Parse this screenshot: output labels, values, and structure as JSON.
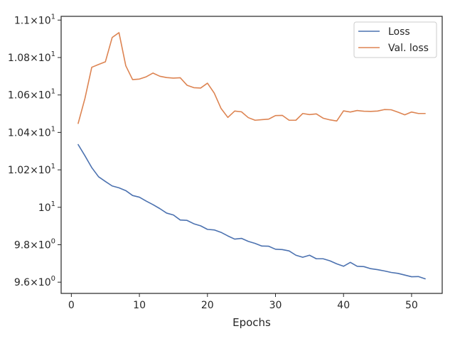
{
  "chart_data": {
    "type": "line",
    "title": "",
    "xlabel": "Epochs",
    "ylabel": "",
    "xlim": [
      -1.5,
      54.5
    ],
    "ylim": [
      9.54,
      11.02
    ],
    "x_ticks": [
      0,
      10,
      20,
      30,
      40,
      50
    ],
    "x_tick_labels": [
      "0",
      "10",
      "20",
      "30",
      "40",
      "50"
    ],
    "y_ticks": [
      {
        "value": 9.6,
        "mantissa": "9.6",
        "power": "0",
        "plain": ""
      },
      {
        "value": 9.8,
        "mantissa": "9.8",
        "power": "0",
        "plain": ""
      },
      {
        "value": 10.0,
        "mantissa": "",
        "power": "1",
        "plain": ""
      },
      {
        "value": 10.2,
        "mantissa": "1.02",
        "power": "1",
        "plain": ""
      },
      {
        "value": 10.4,
        "mantissa": "1.04",
        "power": "1",
        "plain": ""
      },
      {
        "value": 10.6,
        "mantissa": "1.06",
        "power": "1",
        "plain": ""
      },
      {
        "value": 10.8,
        "mantissa": "1.08",
        "power": "1",
        "plain": ""
      },
      {
        "value": 11.0,
        "mantissa": "1.1",
        "power": "1",
        "plain": ""
      }
    ],
    "grid": false,
    "legend": {
      "position": "top-right"
    },
    "x": [
      1,
      2,
      3,
      4,
      5,
      6,
      7,
      8,
      9,
      10,
      11,
      12,
      13,
      14,
      15,
      16,
      17,
      18,
      19,
      20,
      21,
      22,
      23,
      24,
      25,
      26,
      27,
      28,
      29,
      30,
      31,
      32,
      33,
      34,
      35,
      36,
      37,
      38,
      39,
      40,
      41,
      42,
      43,
      44,
      45,
      46,
      47,
      48,
      49,
      50,
      51,
      52
    ],
    "series": [
      {
        "name": "Loss",
        "color": "#4c72b0",
        "values": [
          10.335,
          10.275,
          10.212,
          10.163,
          10.138,
          10.114,
          10.104,
          10.089,
          10.063,
          10.054,
          10.033,
          10.014,
          9.993,
          9.969,
          9.959,
          9.932,
          9.93,
          9.912,
          9.901,
          9.882,
          9.879,
          9.866,
          9.847,
          9.83,
          9.834,
          9.818,
          9.807,
          9.793,
          9.792,
          9.776,
          9.774,
          9.767,
          9.744,
          9.733,
          9.744,
          9.725,
          9.725,
          9.714,
          9.698,
          9.685,
          9.706,
          9.685,
          9.683,
          9.672,
          9.667,
          9.66,
          9.652,
          9.647,
          9.638,
          9.629,
          9.63,
          9.618
        ]
      },
      {
        "name": "Val. loss",
        "color": "#dd8452",
        "values": [
          10.448,
          10.582,
          10.748,
          10.763,
          10.777,
          10.907,
          10.933,
          10.756,
          10.682,
          10.685,
          10.697,
          10.717,
          10.7,
          10.693,
          10.69,
          10.692,
          10.652,
          10.639,
          10.637,
          10.663,
          10.61,
          10.528,
          10.48,
          10.514,
          10.51,
          10.479,
          10.465,
          10.468,
          10.471,
          10.49,
          10.491,
          10.465,
          10.465,
          10.501,
          10.495,
          10.499,
          10.476,
          10.467,
          10.461,
          10.515,
          10.509,
          10.517,
          10.513,
          10.512,
          10.514,
          10.522,
          10.521,
          10.508,
          10.494,
          10.509,
          10.501,
          10.501
        ]
      }
    ]
  }
}
